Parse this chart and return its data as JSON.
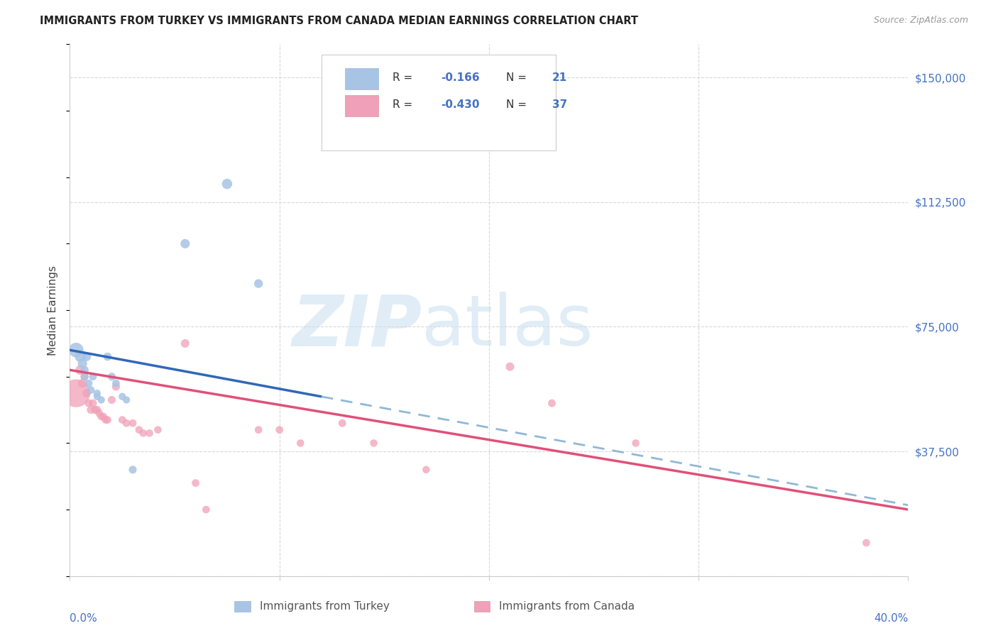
{
  "title": "IMMIGRANTS FROM TURKEY VS IMMIGRANTS FROM CANADA MEDIAN EARNINGS CORRELATION CHART",
  "source": "Source: ZipAtlas.com",
  "ylabel": "Median Earnings",
  "xlim": [
    0.0,
    0.4
  ],
  "ylim": [
    0,
    160000
  ],
  "ytick_vals": [
    0,
    37500,
    75000,
    112500,
    150000
  ],
  "ytick_labels": [
    "",
    "$37,500",
    "$75,000",
    "$112,500",
    "$150,000"
  ],
  "turkey_color": "#a8c4e5",
  "turkey_line_color": "#3068b8",
  "canada_color": "#f0a0b8",
  "canada_line_color": "#e0507a",
  "dashed_line_color": "#90b8d8",
  "turkey_R": -0.166,
  "turkey_N": 21,
  "canada_R": -0.43,
  "canada_N": 37,
  "turkey_points": [
    [
      0.003,
      68000,
      220
    ],
    [
      0.005,
      66000,
      120
    ],
    [
      0.006,
      64000,
      90
    ],
    [
      0.007,
      62000,
      70
    ],
    [
      0.007,
      60000,
      60
    ],
    [
      0.008,
      66000,
      80
    ],
    [
      0.009,
      58000,
      60
    ],
    [
      0.01,
      56000,
      60
    ],
    [
      0.011,
      60000,
      60
    ],
    [
      0.013,
      55000,
      55
    ],
    [
      0.013,
      54000,
      55
    ],
    [
      0.015,
      53000,
      55
    ],
    [
      0.018,
      66000,
      70
    ],
    [
      0.02,
      60000,
      65
    ],
    [
      0.022,
      58000,
      60
    ],
    [
      0.025,
      54000,
      55
    ],
    [
      0.027,
      53000,
      55
    ],
    [
      0.03,
      32000,
      65
    ],
    [
      0.055,
      100000,
      90
    ],
    [
      0.075,
      118000,
      110
    ],
    [
      0.09,
      88000,
      80
    ]
  ],
  "canada_points": [
    [
      0.003,
      55000,
      800
    ],
    [
      0.005,
      62000,
      100
    ],
    [
      0.006,
      58000,
      80
    ],
    [
      0.007,
      60000,
      70
    ],
    [
      0.008,
      55000,
      70
    ],
    [
      0.009,
      52000,
      65
    ],
    [
      0.01,
      50000,
      65
    ],
    [
      0.011,
      52000,
      65
    ],
    [
      0.012,
      50000,
      65
    ],
    [
      0.013,
      50000,
      65
    ],
    [
      0.014,
      49000,
      60
    ],
    [
      0.015,
      48000,
      60
    ],
    [
      0.016,
      48000,
      60
    ],
    [
      0.017,
      47000,
      60
    ],
    [
      0.018,
      47000,
      60
    ],
    [
      0.02,
      53000,
      65
    ],
    [
      0.022,
      57000,
      68
    ],
    [
      0.025,
      47000,
      60
    ],
    [
      0.027,
      46000,
      60
    ],
    [
      0.03,
      46000,
      60
    ],
    [
      0.033,
      44000,
      58
    ],
    [
      0.035,
      43000,
      58
    ],
    [
      0.038,
      43000,
      58
    ],
    [
      0.042,
      44000,
      58
    ],
    [
      0.055,
      70000,
      75
    ],
    [
      0.06,
      28000,
      60
    ],
    [
      0.065,
      20000,
      60
    ],
    [
      0.09,
      44000,
      60
    ],
    [
      0.1,
      44000,
      60
    ],
    [
      0.11,
      40000,
      58
    ],
    [
      0.13,
      46000,
      62
    ],
    [
      0.145,
      40000,
      58
    ],
    [
      0.17,
      32000,
      58
    ],
    [
      0.21,
      63000,
      75
    ],
    [
      0.23,
      52000,
      62
    ],
    [
      0.27,
      40000,
      58
    ],
    [
      0.38,
      10000,
      60
    ]
  ]
}
